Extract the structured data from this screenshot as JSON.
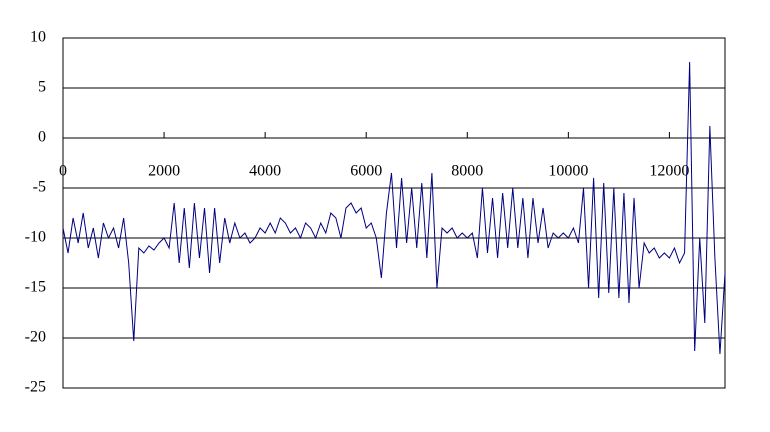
{
  "chart_data": {
    "type": "line",
    "color": "#000080",
    "grid": true,
    "xlim": [
      0,
      13100
    ],
    "xticks": [
      0,
      2000,
      4000,
      6000,
      8000,
      10000,
      12000
    ],
    "ylim": [
      -25,
      10
    ],
    "yticks": [
      -25,
      -20,
      -15,
      -10,
      -5,
      0,
      5,
      10
    ],
    "x": [
      0,
      100,
      200,
      300,
      400,
      500,
      600,
      700,
      800,
      900,
      1000,
      1100,
      1200,
      1300,
      1400,
      1500,
      1600,
      1700,
      1800,
      1900,
      2000,
      2100,
      2200,
      2300,
      2400,
      2500,
      2600,
      2700,
      2800,
      2900,
      3000,
      3100,
      3200,
      3300,
      3400,
      3500,
      3600,
      3700,
      3800,
      3900,
      4000,
      4100,
      4200,
      4300,
      4400,
      4500,
      4600,
      4700,
      4800,
      4900,
      5000,
      5100,
      5200,
      5300,
      5400,
      5500,
      5600,
      5700,
      5800,
      5900,
      6000,
      6100,
      6200,
      6300,
      6400,
      6500,
      6600,
      6700,
      6800,
      6900,
      7000,
      7100,
      7200,
      7300,
      7400,
      7500,
      7600,
      7700,
      7800,
      7900,
      8000,
      8100,
      8200,
      8300,
      8400,
      8500,
      8600,
      8700,
      8800,
      8900,
      9000,
      9100,
      9200,
      9300,
      9400,
      9500,
      9600,
      9700,
      9800,
      9900,
      10000,
      10100,
      10200,
      10300,
      10400,
      10500,
      10600,
      10700,
      10800,
      10900,
      11000,
      11100,
      11200,
      11300,
      11400,
      11500,
      11600,
      11700,
      11800,
      11900,
      12000,
      12100,
      12200,
      12300,
      12400,
      12500,
      12600,
      12700,
      12800,
      12900,
      13000,
      13100
    ],
    "values": [
      -9,
      -11.5,
      -8,
      -10.5,
      -7.5,
      -11,
      -9,
      -12,
      -8.5,
      -10,
      -9,
      -11,
      -8,
      -12.5,
      -20.3,
      -11,
      -11.5,
      -10.8,
      -11.2,
      -10.5,
      -10,
      -11,
      -6.5,
      -12.5,
      -7,
      -13,
      -6.5,
      -12,
      -7,
      -13.5,
      -7,
      -12.5,
      -8,
      -10.5,
      -8.5,
      -10,
      -9.5,
      -10.5,
      -10,
      -9,
      -9.5,
      -8.5,
      -9.5,
      -8,
      -8.5,
      -9.5,
      -9,
      -10,
      -8.5,
      -9,
      -10,
      -8.5,
      -9.5,
      -7.5,
      -8,
      -10,
      -7,
      -6.5,
      -7.5,
      -7,
      -9,
      -8.5,
      -10,
      -14,
      -7.5,
      -3.5,
      -11,
      -4,
      -10.5,
      -5,
      -11,
      -4.5,
      -12,
      -3.5,
      -15,
      -9,
      -9.5,
      -9,
      -10,
      -9.5,
      -10,
      -9.5,
      -12,
      -5,
      -11.5,
      -6,
      -12,
      -5.5,
      -11,
      -5,
      -11,
      -6,
      -12,
      -6,
      -10.5,
      -7,
      -11,
      -9.5,
      -10,
      -9.5,
      -10,
      -9,
      -10.5,
      -5,
      -15,
      -4,
      -16,
      -4.5,
      -15.5,
      -5,
      -16,
      -5.5,
      -16.5,
      -6,
      -15,
      -10.5,
      -11.5,
      -11,
      -12,
      -11.5,
      -12,
      -11,
      -12.5,
      -11.5,
      7.6,
      -21.3,
      -10,
      -18.5,
      1.2,
      -12,
      -21.6,
      -13.5
    ]
  }
}
